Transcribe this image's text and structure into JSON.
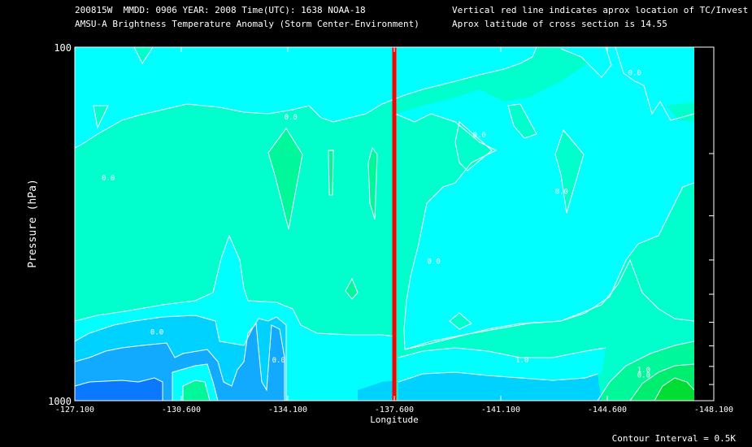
{
  "header": {
    "line1": "200815W  MMDD: 0906 YEAR: 2008 Time(UTC): 1638 NOAA-18",
    "line2": "AMSU-A Brightness Temperature Anomaly (Storm Center-Environment)",
    "line3": "Vertical red line indicates aprox location of TC/Invest",
    "line4": "Aprox latitude of cross section is 14.55"
  },
  "footer": {
    "contour_interval": "Contour Interval = 0.5K"
  },
  "colors": {
    "background": "#000000",
    "fill_deep_blue": "#0a78ff",
    "fill_blue": "#12aaff",
    "fill_sky": "#00d2ff",
    "fill_cyan": "#00ffff",
    "fill_aqua": "#00ffcc",
    "fill_seagreen": "#00f89a",
    "fill_green": "#00ee70",
    "fill_bright_green": "#00dd33",
    "storm_line": "#ff0000",
    "contour_line": "#ffffff"
  },
  "chart_data": {
    "type": "contour",
    "title": "AMSU-A Brightness Temperature Anomaly (Storm Center-Environment)",
    "xlabel": "Longitude",
    "ylabel": "Pressure (hPa)",
    "xlim": [
      -127.1,
      -148.1
    ],
    "ylim": [
      1000,
      100
    ],
    "y_scale": "log",
    "x_ticks": [
      -127.1,
      -130.6,
      -134.1,
      -137.6,
      -141.1,
      -144.6,
      -148.1
    ],
    "x_tick_labels": [
      "-127.100",
      "-130.600",
      "-134.100",
      "-137.600",
      "-141.100",
      "-144.600",
      "-148.100"
    ],
    "y_tick_labels": [
      "100",
      "1000"
    ],
    "y_minor_ticks": [
      200,
      300,
      400,
      500,
      600,
      700,
      800,
      900
    ],
    "storm_longitude": -137.6,
    "cross_section_latitude": 14.55,
    "contour_interval_K": 0.5,
    "contour_labels": [
      {
        "text": "0.0",
        "lon": -134.2,
        "p": 160
      },
      {
        "text": "0.0",
        "lon": -128.2,
        "p": 238
      },
      {
        "text": "0.0",
        "lon": -140.4,
        "p": 180
      },
      {
        "text": "0.0",
        "lon": -138.9,
        "p": 410
      },
      {
        "text": "0.0",
        "lon": -145.5,
        "p": 120
      },
      {
        "text": "0.0",
        "lon": -143.1,
        "p": 260
      },
      {
        "text": "0.0",
        "lon": -129.8,
        "p": 650
      },
      {
        "text": "0.0",
        "lon": -133.8,
        "p": 780
      },
      {
        "text": "1.0",
        "lon": -141.8,
        "p": 780
      },
      {
        "text": "0.0",
        "lon": -145.8,
        "p": 860
      },
      {
        "text": "1.0",
        "lon": -145.8,
        "p": 830
      }
    ],
    "annotations": [
      "Vertical red line indicates aprox location of TC/Invest",
      "Contour Interval = 0.5K"
    ]
  }
}
